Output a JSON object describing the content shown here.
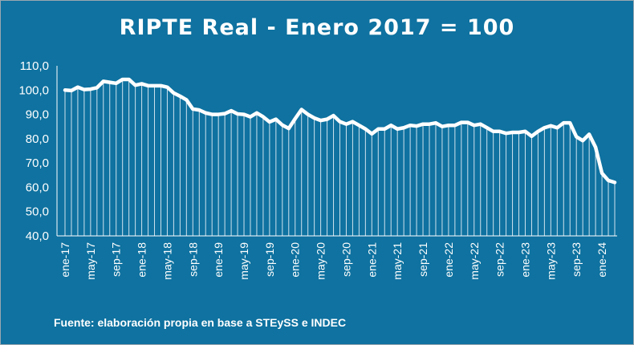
{
  "chart_data": {
    "type": "line",
    "title": "RIPTE Real - Enero 2017 = 100",
    "source": "Fuente: elaboración propia en base a STEySS e INDEC",
    "xlabel": "",
    "ylabel": "",
    "ylim": [
      40,
      110
    ],
    "yticks": [
      "40,0",
      "50,0",
      "60,0",
      "70,0",
      "80,0",
      "90,0",
      "100,0",
      "110,0"
    ],
    "tick_every_months": 4,
    "xtick_labels": [
      "ene-17",
      "may-17",
      "sep-17",
      "ene-18",
      "may-18",
      "sep-18",
      "ene-19",
      "may-19",
      "sep-19",
      "ene-20",
      "may-20",
      "sep-20",
      "ene-21",
      "may-21",
      "sep-21",
      "ene-22",
      "may-22",
      "sep-22",
      "ene-23",
      "may-23",
      "sep-23",
      "ene-24"
    ],
    "grid": false,
    "drop_lines": true,
    "series": [
      {
        "values": [
          100,
          99.8,
          101.2,
          100.2,
          100.4,
          101,
          103.6,
          103.2,
          102.8,
          104.4,
          104.4,
          102,
          102.6,
          101.8,
          101.8,
          101.8,
          101.2,
          98.8,
          97.5,
          96,
          92.2,
          91.8,
          90.6,
          90,
          90,
          90.3,
          91.5,
          90.2,
          90,
          89,
          90.6,
          89,
          86.9,
          88,
          85.6,
          84.2,
          88.2,
          92,
          90,
          88.5,
          87.5,
          88,
          89.5,
          87,
          86,
          87,
          85.5,
          84,
          82,
          84,
          84,
          85.5,
          84,
          84.5,
          85.5,
          85.2,
          86,
          86,
          86.5,
          85,
          85.5,
          85.5,
          86.7,
          86.7,
          85.5,
          86,
          84.5,
          83,
          83,
          82.2,
          82.6,
          82.6,
          83,
          81,
          83,
          84.5,
          85.3,
          84.5,
          86.5,
          86.5,
          80.8,
          79.2,
          81.8,
          76.5,
          65.8,
          62.8,
          62
        ]
      }
    ]
  }
}
